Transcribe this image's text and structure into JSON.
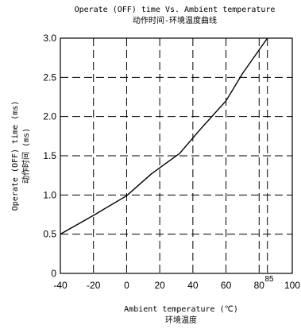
{
  "chart_data": {
    "type": "line",
    "title": "Operate (OFF) time Vs. Ambient temperature",
    "subtitle": "动作时间-环境温度曲线",
    "xlabel": "Ambient temperature (℃)",
    "xlabel_sub": "环境温度",
    "ylabel": "Operate (OFF) time (ms)",
    "ylabel_sub": "动作时间 (ms)",
    "xlim": [
      -40,
      100
    ],
    "ylim": [
      0,
      3.0
    ],
    "x_ticks": [
      -40,
      -20,
      0,
      20,
      40,
      60,
      80,
      100
    ],
    "y_ticks": [
      0,
      0.5,
      1.0,
      1.5,
      2.0,
      2.5,
      3.0
    ],
    "x_tick_labels": [
      "-40",
      "-20",
      "0",
      "20",
      "40",
      "60",
      "80",
      "100"
    ],
    "y_tick_labels": [
      "0",
      "0.5",
      "1.0",
      "1.5",
      "2.0",
      "2.5",
      "3.0"
    ],
    "extra_x_gridline": 85,
    "annotation": "85",
    "grid": "dashed",
    "series": [
      {
        "x": [
          -40,
          -20,
          0,
          15,
          32,
          45,
          60,
          70,
          85
        ],
        "y": [
          0.5,
          0.74,
          0.99,
          1.27,
          1.53,
          1.85,
          2.2,
          2.55,
          3.0
        ]
      }
    ]
  }
}
